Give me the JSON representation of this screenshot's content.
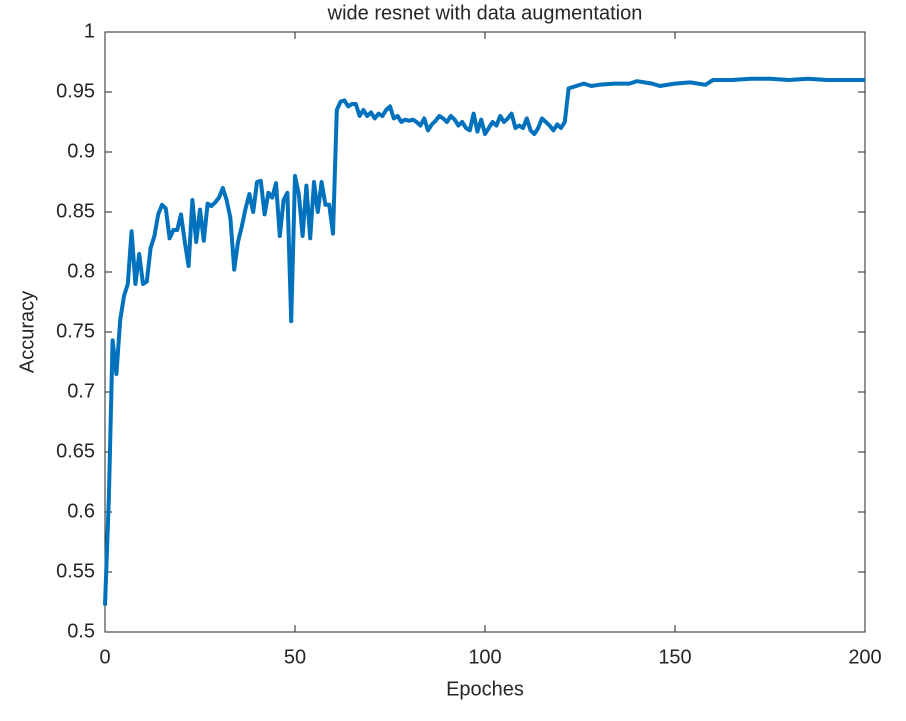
{
  "chart_data": {
    "type": "line",
    "title": "wide resnet with data augmentation",
    "xlabel": "Epoches",
    "ylabel": "Accuracy",
    "x": [
      0,
      1,
      2,
      3,
      4,
      5,
      6,
      7,
      8,
      9,
      10,
      11,
      12,
      13,
      14,
      15,
      16,
      17,
      18,
      19,
      20,
      21,
      22,
      23,
      24,
      25,
      26,
      27,
      28,
      29,
      30,
      31,
      32,
      33,
      34,
      35,
      36,
      37,
      38,
      39,
      40,
      41,
      42,
      43,
      44,
      45,
      46,
      47,
      48,
      49,
      50,
      51,
      52,
      53,
      54,
      55,
      56,
      57,
      58,
      59,
      60,
      61,
      62,
      63,
      64,
      65,
      66,
      67,
      68,
      69,
      70,
      71,
      72,
      73,
      74,
      75,
      76,
      77,
      78,
      79,
      80,
      81,
      82,
      83,
      84,
      85,
      86,
      87,
      88,
      89,
      90,
      91,
      92,
      93,
      94,
      95,
      96,
      97,
      98,
      99,
      100,
      101,
      102,
      103,
      104,
      105,
      106,
      107,
      108,
      109,
      110,
      111,
      112,
      113,
      114,
      115,
      116,
      117,
      118,
      119,
      120,
      121,
      122,
      124,
      126,
      128,
      130,
      134,
      138,
      140,
      144,
      146,
      150,
      154,
      158,
      160,
      165,
      170,
      175,
      180,
      185,
      190,
      195,
      200
    ],
    "series": [
      {
        "name": "Accuracy",
        "color": "#0072BD",
        "values": [
          0.522,
          0.61,
          0.743,
          0.715,
          0.76,
          0.78,
          0.79,
          0.834,
          0.79,
          0.815,
          0.79,
          0.792,
          0.82,
          0.83,
          0.848,
          0.856,
          0.853,
          0.828,
          0.835,
          0.835,
          0.848,
          0.825,
          0.805,
          0.86,
          0.825,
          0.852,
          0.826,
          0.857,
          0.855,
          0.858,
          0.862,
          0.87,
          0.86,
          0.845,
          0.802,
          0.825,
          0.838,
          0.853,
          0.865,
          0.85,
          0.875,
          0.876,
          0.848,
          0.866,
          0.862,
          0.874,
          0.83,
          0.86,
          0.866,
          0.759,
          0.88,
          0.865,
          0.83,
          0.872,
          0.828,
          0.875,
          0.85,
          0.875,
          0.856,
          0.856,
          0.832,
          0.935,
          0.942,
          0.943,
          0.938,
          0.94,
          0.94,
          0.93,
          0.935,
          0.93,
          0.933,
          0.928,
          0.932,
          0.93,
          0.935,
          0.938,
          0.928,
          0.93,
          0.925,
          0.927,
          0.926,
          0.927,
          0.925,
          0.922,
          0.928,
          0.918,
          0.923,
          0.926,
          0.93,
          0.928,
          0.925,
          0.93,
          0.927,
          0.922,
          0.925,
          0.92,
          0.918,
          0.932,
          0.917,
          0.927,
          0.915,
          0.92,
          0.925,
          0.922,
          0.93,
          0.925,
          0.928,
          0.932,
          0.92,
          0.922,
          0.92,
          0.928,
          0.918,
          0.915,
          0.92,
          0.928,
          0.925,
          0.922,
          0.918,
          0.923,
          0.92,
          0.925,
          0.953,
          0.955,
          0.957,
          0.955,
          0.956,
          0.957,
          0.957,
          0.959,
          0.957,
          0.955,
          0.957,
          0.958,
          0.956,
          0.96,
          0.96,
          0.961,
          0.961,
          0.96,
          0.961,
          0.96,
          0.96,
          0.96
        ]
      }
    ],
    "xlim": [
      0,
      200
    ],
    "xticks": [
      0,
      50,
      100,
      150,
      200
    ],
    "ylim": [
      0.5,
      1
    ],
    "yticks": [
      0.5,
      0.55,
      0.6,
      0.65,
      0.7,
      0.75,
      0.8,
      0.85,
      0.9,
      0.95,
      1
    ]
  }
}
